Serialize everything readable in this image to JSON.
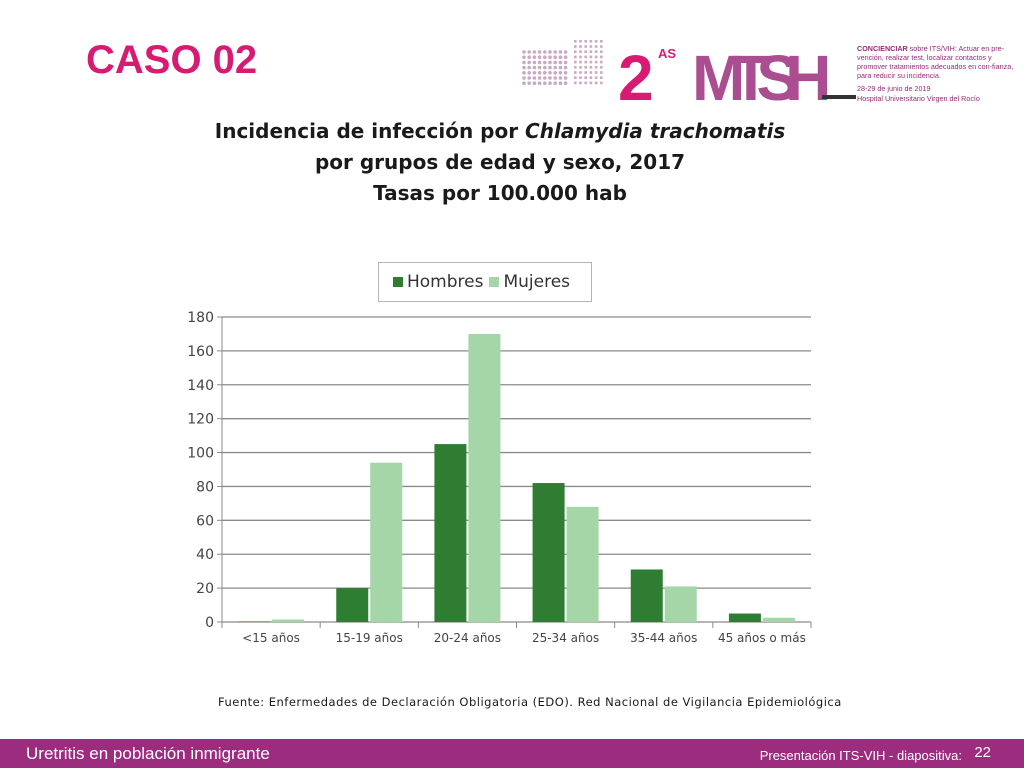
{
  "slide": {
    "title": "CASO 02",
    "footer_left": "Uretritis en población inmigrante",
    "footer_right": "Presentación ITS-VIH  - diapositiva:",
    "footer_page": "22"
  },
  "logo": {
    "mark_number": "2",
    "mark_superscript": "AS",
    "mark_letters": "MTSH",
    "tagline_bold": "CONCIENCIAR",
    "tagline_rest": " sobre ITS/VIH: Actuar en pre-vención, realizar test, localizar contactos y promover tratamientos adecuados en con-fianza, para reducir su incidencia.",
    "date": "28-29 de junio de 2019",
    "venue": "Hospital Universitario Virgen del Rocío"
  },
  "chart_data": {
    "type": "bar",
    "title_line1_pre": "Incidencia de infección por ",
    "title_line1_italic": "Chlamydia trachomatis",
    "title_line2": "por grupos de edad y sexo, 2017",
    "title_line3": "Tasas por 100.000 hab",
    "categories": [
      "<15 años",
      "15-19 años",
      "20-24 años",
      "25-34 años",
      "35-44 años",
      "45 años o más"
    ],
    "series": [
      {
        "name": "Hombres",
        "color": "#2e7d32",
        "values": [
          0.3,
          20,
          105,
          82,
          31,
          5
        ]
      },
      {
        "name": "Mujeres",
        "color": "#a5d6a7",
        "values": [
          1.5,
          94,
          170,
          68,
          21,
          2.5
        ]
      }
    ],
    "ylim": [
      0,
      180
    ],
    "yticks": [
      0,
      20,
      40,
      60,
      80,
      100,
      120,
      140,
      160,
      180
    ],
    "grid": true,
    "legend_position": "top-center",
    "source": "Fuente: Enfermedades de Declaración Obligatoria (EDO). Red Nacional de Vigilancia Epidemiológica"
  }
}
